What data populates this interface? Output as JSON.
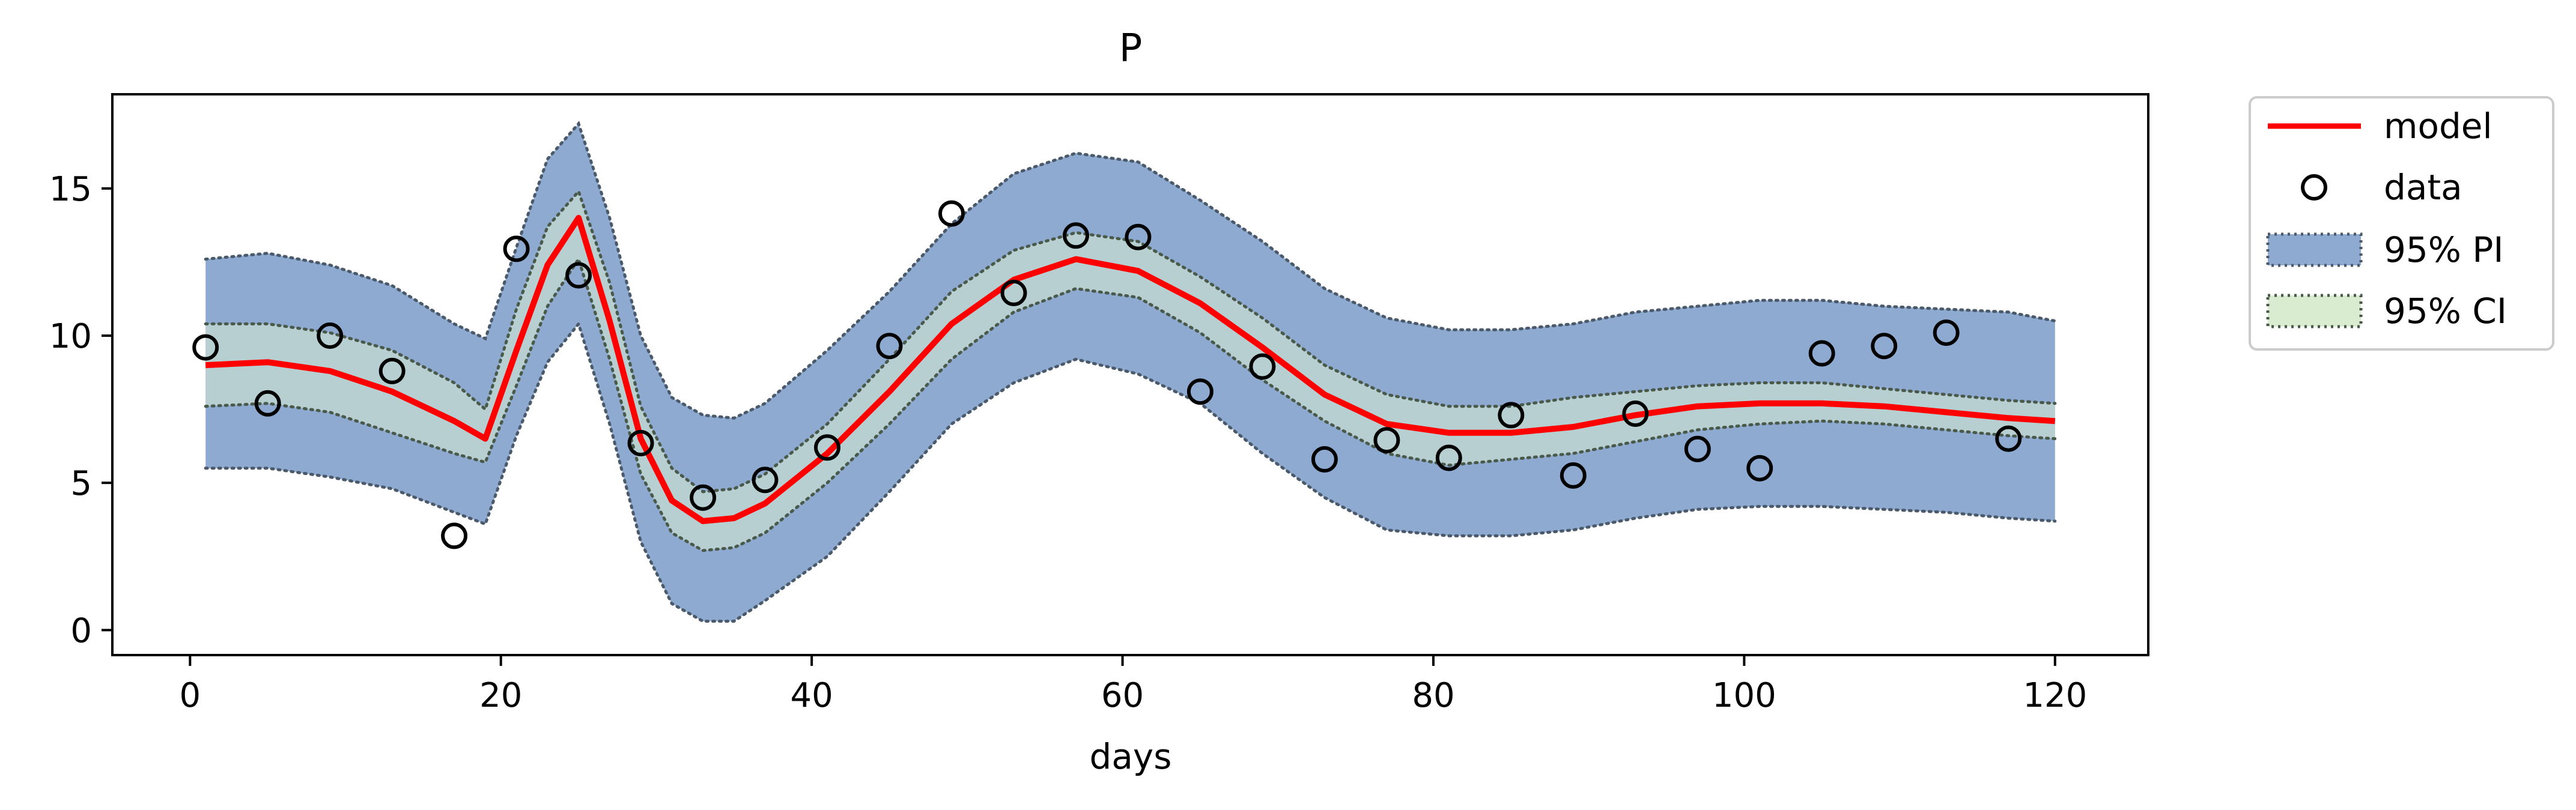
{
  "chart_data": {
    "type": "line",
    "title": "P",
    "xlabel": "days",
    "ylabel": "",
    "xlim": [
      -5,
      126
    ],
    "ylim": [
      -0.85,
      18.2
    ],
    "x_ticks": [
      "0",
      "20",
      "40",
      "60",
      "80",
      "100",
      "120"
    ],
    "y_ticks": [
      "0",
      "5",
      "10",
      "15"
    ],
    "grid": false,
    "legend_position": "outside-top-right",
    "series": [
      {
        "name": "model",
        "kind": "line",
        "color": "#ff0000",
        "x": [
          1,
          5,
          9,
          13,
          17,
          19,
          21,
          23,
          25,
          27,
          29,
          31,
          33,
          35,
          37,
          41,
          45,
          49,
          53,
          57,
          61,
          65,
          69,
          73,
          77,
          81,
          85,
          89,
          93,
          97,
          101,
          105,
          109,
          113,
          117,
          120
        ],
        "y": [
          9.0,
          9.1,
          8.8,
          8.1,
          7.1,
          6.5,
          9.5,
          12.4,
          14.0,
          10.5,
          6.5,
          4.4,
          3.7,
          3.8,
          4.3,
          6.0,
          8.1,
          10.4,
          11.9,
          12.6,
          12.2,
          11.1,
          9.6,
          8.0,
          7.0,
          6.7,
          6.7,
          6.9,
          7.3,
          7.6,
          7.7,
          7.7,
          7.6,
          7.4,
          7.2,
          7.1
        ]
      },
      {
        "name": "data",
        "kind": "scatter",
        "x": [
          1,
          5,
          9,
          13,
          17,
          21,
          25,
          29,
          33,
          37,
          41,
          45,
          49,
          53,
          57,
          61,
          65,
          69,
          73,
          77,
          81,
          85,
          89,
          93,
          97,
          101,
          105,
          109,
          113,
          117
        ],
        "y": [
          9.6,
          7.7,
          10.0,
          8.8,
          3.2,
          12.95,
          12.05,
          6.35,
          4.5,
          5.1,
          6.2,
          9.65,
          14.15,
          11.45,
          13.4,
          13.35,
          8.1,
          8.95,
          5.8,
          6.45,
          5.85,
          7.3,
          5.25,
          7.35,
          6.15,
          5.5,
          9.4,
          9.65,
          10.1,
          6.5
        ]
      },
      {
        "name": "95% PI",
        "kind": "band",
        "color": "#8eaad1",
        "x": [
          1,
          5,
          9,
          13,
          17,
          19,
          21,
          23,
          25,
          27,
          29,
          31,
          33,
          35,
          37,
          41,
          45,
          49,
          53,
          57,
          61,
          65,
          69,
          73,
          77,
          81,
          85,
          89,
          93,
          97,
          101,
          105,
          109,
          113,
          117,
          120
        ],
        "lower": [
          5.5,
          5.5,
          5.2,
          4.8,
          4.0,
          3.6,
          6.6,
          9.1,
          10.4,
          7.0,
          3.0,
          0.9,
          0.3,
          0.3,
          1.0,
          2.5,
          4.7,
          7.0,
          8.4,
          9.2,
          8.7,
          7.7,
          6.0,
          4.5,
          3.4,
          3.2,
          3.2,
          3.4,
          3.8,
          4.1,
          4.2,
          4.2,
          4.1,
          4.0,
          3.8,
          3.7
        ],
        "upper": [
          12.6,
          12.8,
          12.4,
          11.7,
          10.4,
          9.9,
          13.0,
          16.0,
          17.2,
          14.0,
          10.0,
          7.9,
          7.3,
          7.2,
          7.7,
          9.5,
          11.5,
          13.8,
          15.5,
          16.2,
          15.9,
          14.6,
          13.2,
          11.6,
          10.6,
          10.2,
          10.2,
          10.4,
          10.8,
          11.0,
          11.2,
          11.2,
          11.0,
          10.9,
          10.8,
          10.5
        ]
      },
      {
        "name": "95% CI",
        "kind": "band",
        "color": "#d9ecd0",
        "x": [
          1,
          5,
          9,
          13,
          17,
          19,
          21,
          23,
          25,
          27,
          29,
          31,
          33,
          35,
          37,
          41,
          45,
          49,
          53,
          57,
          61,
          65,
          69,
          73,
          77,
          81,
          85,
          89,
          93,
          97,
          101,
          105,
          109,
          113,
          117,
          120
        ],
        "lower": [
          7.6,
          7.7,
          7.4,
          6.7,
          6.0,
          5.7,
          8.3,
          11.0,
          12.6,
          9.2,
          5.3,
          3.3,
          2.7,
          2.8,
          3.3,
          5.0,
          7.0,
          9.2,
          10.8,
          11.6,
          11.3,
          10.1,
          8.5,
          7.1,
          6.0,
          5.6,
          5.8,
          6.0,
          6.4,
          6.8,
          7.0,
          7.1,
          7.0,
          6.8,
          6.6,
          6.5
        ],
        "upper": [
          10.4,
          10.4,
          10.1,
          9.5,
          8.4,
          7.5,
          10.9,
          13.7,
          14.9,
          11.8,
          7.6,
          5.5,
          4.7,
          4.8,
          5.3,
          7.0,
          9.2,
          11.5,
          12.9,
          13.5,
          13.2,
          12.0,
          10.6,
          9.0,
          8.0,
          7.6,
          7.6,
          7.9,
          8.1,
          8.3,
          8.4,
          8.4,
          8.2,
          8.0,
          7.8,
          7.7
        ]
      }
    ]
  }
}
